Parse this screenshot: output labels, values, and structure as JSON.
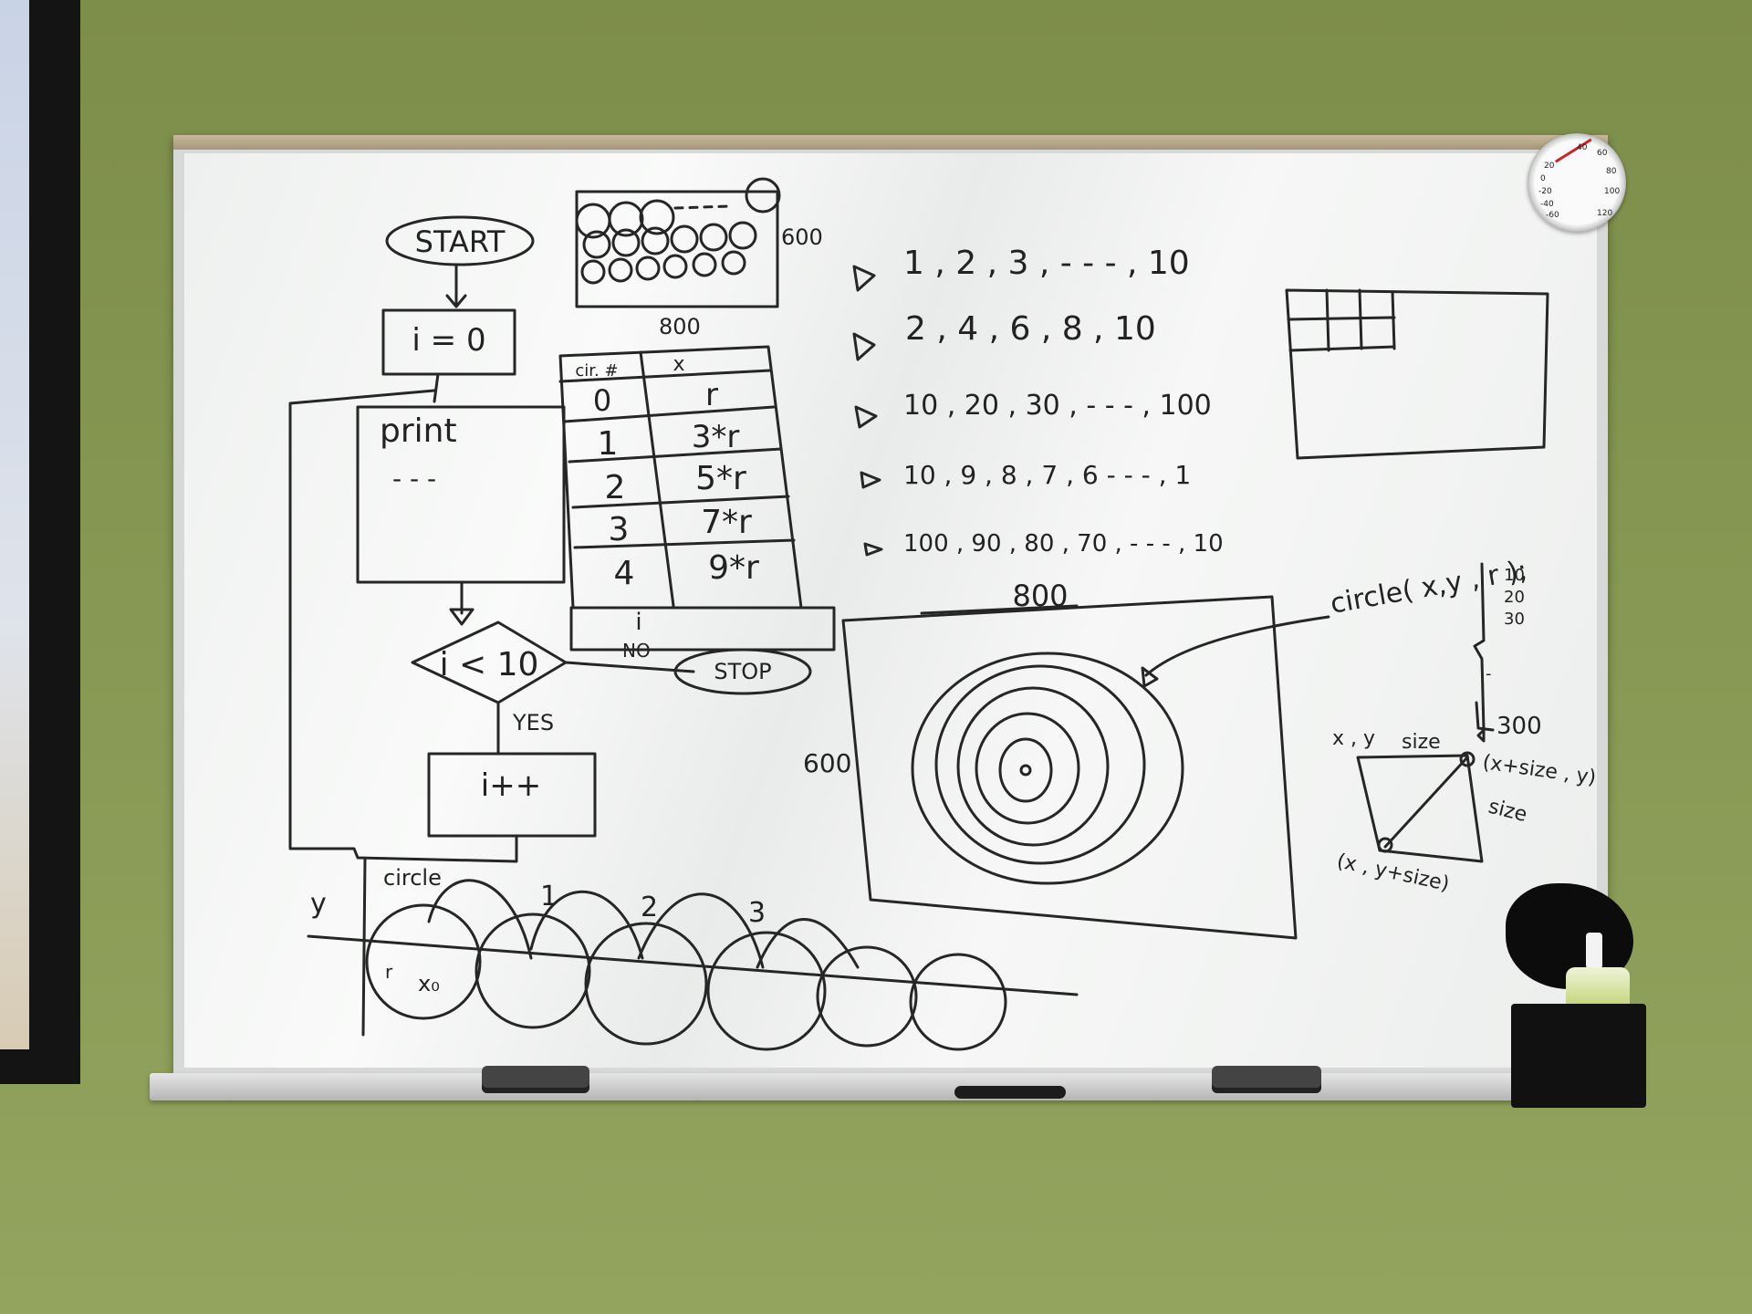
{
  "flowchart": {
    "start": "START",
    "init": "i = 0",
    "body": "print",
    "body_dots": "- - -",
    "condition": "i < 10",
    "no": "NO",
    "yes": "YES",
    "stop": "STOP",
    "increment": "i++"
  },
  "grid_sketch": {
    "height_label": "600",
    "width_label": "800"
  },
  "table": {
    "headers": [
      "cir. #",
      "x"
    ],
    "rows": [
      [
        "0",
        "r"
      ],
      [
        "1",
        "3*r"
      ],
      [
        "2",
        "5*r"
      ],
      [
        "3",
        "7*r"
      ],
      [
        "4",
        "9*r"
      ]
    ],
    "footer": "i"
  },
  "sequences": [
    "1 , 2 , 3 , - - - , 10",
    "2 , 4 , 6 , 8 , 10",
    "10 , 20 , 30 , - - - , 100",
    "10 , 9 , 8 , 7 , 6 - - - , 1",
    "100 , 90 , 80 , 70 , - - - , 10"
  ],
  "canvas": {
    "width_label": "800",
    "height_label": "600"
  },
  "circle_call": {
    "text": "circle( x,y , r );",
    "values": [
      "10",
      "20",
      "30",
      "-",
      "300"
    ]
  },
  "square_diagram": {
    "top_left": "x , y",
    "top_side": "size",
    "top_right": "(x+size , y)",
    "right_side": "size",
    "bottom_left": "(x , y+size)"
  },
  "circle_row": {
    "label": "circle",
    "y_axis": "y",
    "first": "r",
    "x0": "x₀",
    "numbers": [
      "1",
      "2",
      "3"
    ]
  },
  "thermometer": {
    "scale_left": [
      "20",
      "0",
      "-20",
      "-40",
      "-60"
    ],
    "scale_right": [
      "40",
      "60",
      "80",
      "100",
      "120"
    ]
  }
}
